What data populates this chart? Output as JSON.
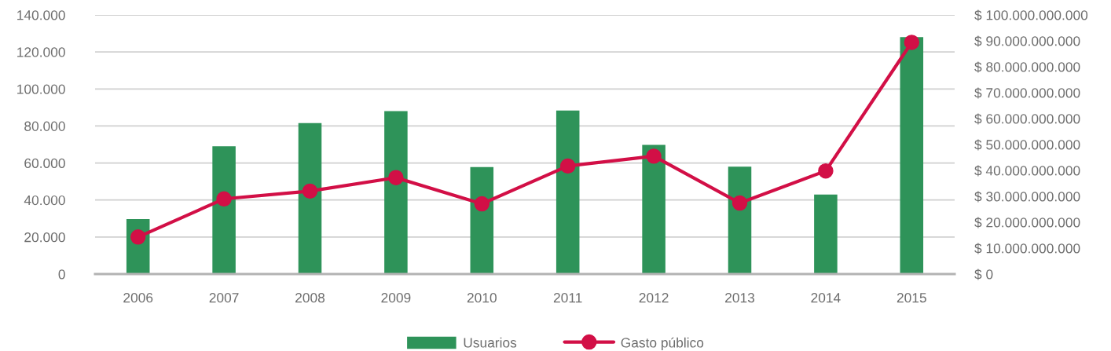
{
  "chart_data": {
    "type": "bar",
    "categories": [
      "2006",
      "2007",
      "2008",
      "2009",
      "2010",
      "2011",
      "2012",
      "2013",
      "2014",
      "2015"
    ],
    "series": [
      {
        "name": "Usuarios",
        "color": "#2e9359",
        "values": [
          29700,
          69000,
          81600,
          88000,
          57800,
          88400,
          69800,
          58000,
          43000,
          128000
        ]
      },
      {
        "name": "Gasto público",
        "type": "line",
        "axis": "y2",
        "color": "#d20f46",
        "marker": "circle",
        "values": [
          14300000000,
          29000000000,
          32000000000,
          37200000000,
          27100000000,
          41700000000,
          45500000000,
          27400000000,
          39800000000,
          89400000000
        ]
      }
    ],
    "ylim": [
      0,
      140000
    ],
    "yticks": [
      0,
      {
        "value": 20000,
        "label": "20.000"
      },
      {
        "value": 40000,
        "label": "40.000"
      },
      {
        "value": 60000,
        "label": "60.000"
      },
      {
        "value": 80000,
        "label": "80.000"
      },
      {
        "value": 100000,
        "label": "100.000"
      },
      {
        "value": 120000,
        "label": "120.000"
      },
      {
        "value": 140000,
        "label": "140.000"
      }
    ],
    "y2lim": [
      0,
      100000000000
    ],
    "y2ticks": [
      {
        "value": 0,
        "label": "$ 0"
      },
      {
        "value": 10000000000,
        "label": "$ 10.000.000.000"
      },
      {
        "value": 20000000000,
        "label": "$ 20.000.000.000"
      },
      {
        "value": 30000000000,
        "label": "$ 30.000.000.000"
      },
      {
        "value": 40000000000,
        "label": "$ 40.000.000.000"
      },
      {
        "value": 50000000000,
        "label": "$ 50.000.000.000"
      },
      {
        "value": 60000000000,
        "label": "$ 60.000.000.000"
      },
      {
        "value": 70000000000,
        "label": "$ 70.000.000.000"
      },
      {
        "value": 80000000000,
        "label": "$ 80.000.000.000"
      },
      {
        "value": 90000000000,
        "label": "$ 90.000.000.000"
      },
      {
        "value": 100000000000,
        "label": "$ 100.000.000.000"
      }
    ],
    "grid": "y",
    "legend": "bottom"
  }
}
